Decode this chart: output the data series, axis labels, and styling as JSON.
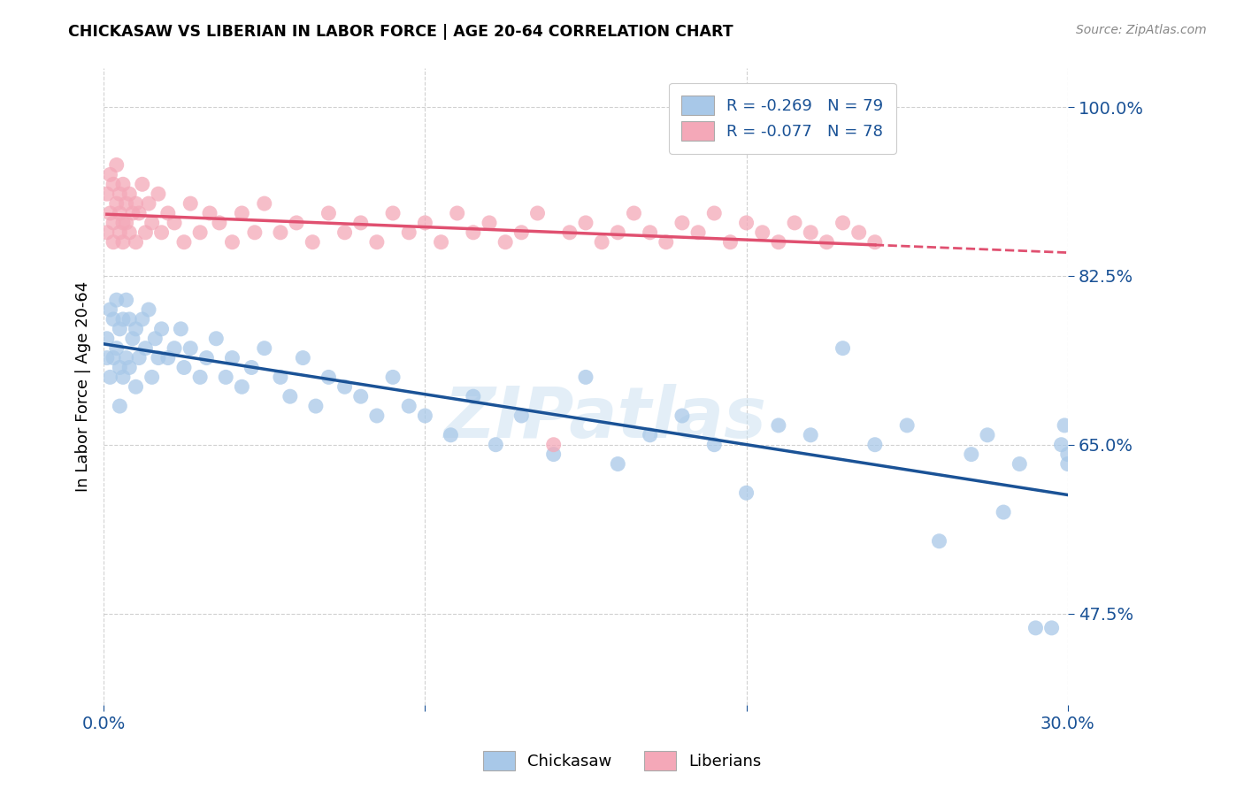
{
  "title": "CHICKASAW VS LIBERIAN IN LABOR FORCE | AGE 20-64 CORRELATION CHART",
  "source": "Source: ZipAtlas.com",
  "ylabel": "In Labor Force | Age 20-64",
  "yticks": [
    0.475,
    0.65,
    0.825,
    1.0
  ],
  "ytick_labels": [
    "47.5%",
    "65.0%",
    "82.5%",
    "100.0%"
  ],
  "xmin": 0.0,
  "xmax": 0.3,
  "ymin": 0.38,
  "ymax": 1.04,
  "chickasaw_R": -0.269,
  "chickasaw_N": 79,
  "liberian_R": -0.077,
  "liberian_N": 78,
  "chickasaw_color": "#a8c8e8",
  "liberian_color": "#f4a8b8",
  "chickasaw_line_color": "#1a5296",
  "liberian_line_color": "#e05070",
  "watermark": "ZIPatlas",
  "watermark_color": "#c8dff0",
  "legend_text_color": "#1a5296",
  "legend_label1": "R = -0.269   N = 79",
  "legend_label2": "R = -0.077   N = 78",
  "bottom_legend_label1": "Chickasaw",
  "bottom_legend_label2": "Liberians",
  "tick_color": "#1a5296",
  "chickasaw_x": [
    0.001,
    0.001,
    0.002,
    0.002,
    0.003,
    0.003,
    0.004,
    0.004,
    0.005,
    0.005,
    0.005,
    0.006,
    0.006,
    0.007,
    0.007,
    0.008,
    0.008,
    0.009,
    0.01,
    0.01,
    0.011,
    0.012,
    0.013,
    0.014,
    0.015,
    0.016,
    0.017,
    0.018,
    0.02,
    0.022,
    0.024,
    0.025,
    0.027,
    0.03,
    0.032,
    0.035,
    0.038,
    0.04,
    0.043,
    0.046,
    0.05,
    0.055,
    0.058,
    0.062,
    0.066,
    0.07,
    0.075,
    0.08,
    0.085,
    0.09,
    0.095,
    0.1,
    0.108,
    0.115,
    0.122,
    0.13,
    0.14,
    0.15,
    0.16,
    0.17,
    0.18,
    0.19,
    0.2,
    0.21,
    0.22,
    0.23,
    0.24,
    0.25,
    0.26,
    0.27,
    0.275,
    0.28,
    0.285,
    0.29,
    0.295,
    0.298,
    0.299,
    0.3,
    0.3
  ],
  "chickasaw_y": [
    0.76,
    0.74,
    0.79,
    0.72,
    0.78,
    0.74,
    0.8,
    0.75,
    0.77,
    0.73,
    0.69,
    0.78,
    0.72,
    0.8,
    0.74,
    0.78,
    0.73,
    0.76,
    0.77,
    0.71,
    0.74,
    0.78,
    0.75,
    0.79,
    0.72,
    0.76,
    0.74,
    0.77,
    0.74,
    0.75,
    0.77,
    0.73,
    0.75,
    0.72,
    0.74,
    0.76,
    0.72,
    0.74,
    0.71,
    0.73,
    0.75,
    0.72,
    0.7,
    0.74,
    0.69,
    0.72,
    0.71,
    0.7,
    0.68,
    0.72,
    0.69,
    0.68,
    0.66,
    0.7,
    0.65,
    0.68,
    0.64,
    0.72,
    0.63,
    0.66,
    0.68,
    0.65,
    0.6,
    0.67,
    0.66,
    0.75,
    0.65,
    0.67,
    0.55,
    0.64,
    0.66,
    0.58,
    0.63,
    0.46,
    0.46,
    0.65,
    0.67,
    0.64,
    0.63
  ],
  "liberian_x": [
    0.001,
    0.001,
    0.002,
    0.002,
    0.003,
    0.003,
    0.003,
    0.004,
    0.004,
    0.005,
    0.005,
    0.005,
    0.006,
    0.006,
    0.006,
    0.007,
    0.007,
    0.008,
    0.008,
    0.009,
    0.01,
    0.01,
    0.011,
    0.012,
    0.013,
    0.014,
    0.015,
    0.017,
    0.018,
    0.02,
    0.022,
    0.025,
    0.027,
    0.03,
    0.033,
    0.036,
    0.04,
    0.043,
    0.047,
    0.05,
    0.055,
    0.06,
    0.065,
    0.07,
    0.075,
    0.08,
    0.085,
    0.09,
    0.095,
    0.1,
    0.105,
    0.11,
    0.115,
    0.12,
    0.125,
    0.13,
    0.135,
    0.14,
    0.145,
    0.15,
    0.155,
    0.16,
    0.165,
    0.17,
    0.175,
    0.18,
    0.185,
    0.19,
    0.195,
    0.2,
    0.205,
    0.21,
    0.215,
    0.22,
    0.225,
    0.23,
    0.235,
    0.24
  ],
  "liberian_y": [
    0.87,
    0.91,
    0.89,
    0.93,
    0.88,
    0.92,
    0.86,
    0.9,
    0.94,
    0.87,
    0.91,
    0.89,
    0.88,
    0.92,
    0.86,
    0.9,
    0.88,
    0.91,
    0.87,
    0.89,
    0.9,
    0.86,
    0.89,
    0.92,
    0.87,
    0.9,
    0.88,
    0.91,
    0.87,
    0.89,
    0.88,
    0.86,
    0.9,
    0.87,
    0.89,
    0.88,
    0.86,
    0.89,
    0.87,
    0.9,
    0.87,
    0.88,
    0.86,
    0.89,
    0.87,
    0.88,
    0.86,
    0.89,
    0.87,
    0.88,
    0.86,
    0.89,
    0.87,
    0.88,
    0.86,
    0.87,
    0.89,
    0.65,
    0.87,
    0.88,
    0.86,
    0.87,
    0.89,
    0.87,
    0.86,
    0.88,
    0.87,
    0.89,
    0.86,
    0.88,
    0.87,
    0.86,
    0.88,
    0.87,
    0.86,
    0.88,
    0.87,
    0.86
  ]
}
